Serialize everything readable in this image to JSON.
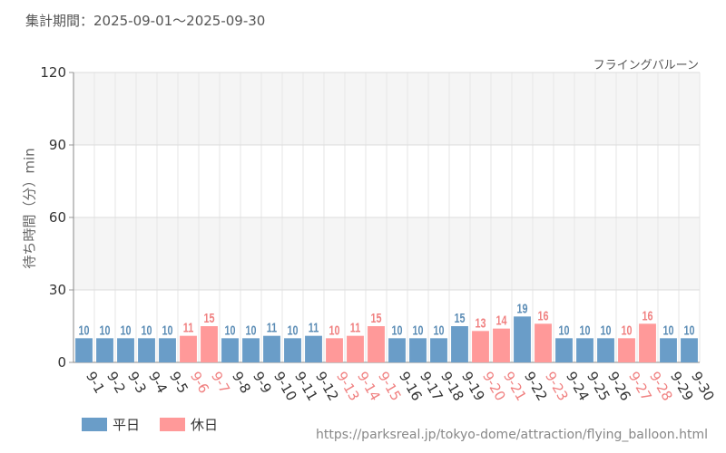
{
  "header": {
    "period_label": "集計期間：2025-09-01〜2025-09-30"
  },
  "attraction_name": "フライングバルーン",
  "source_url": "https://parksreal.jp/tokyo-dome/attraction/flying_balloon.html",
  "legend": [
    {
      "label": "平日",
      "color": "#6a9dc8"
    },
    {
      "label": "休日",
      "color": "#ff9999"
    }
  ],
  "chart_data": {
    "type": "bar",
    "title": "フライングバルーン",
    "xlabel": "",
    "ylabel": "待ち時間（分）min",
    "ylim": [
      0,
      120
    ],
    "yticks": [
      0,
      30,
      60,
      90,
      120
    ],
    "grid": true,
    "legend_position": "bottom-left",
    "categories": [
      "9-1",
      "9-2",
      "9-3",
      "9-4",
      "9-5",
      "9-6",
      "9-7",
      "9-8",
      "9-9",
      "9-10",
      "9-11",
      "9-12",
      "9-13",
      "9-14",
      "9-15",
      "9-16",
      "9-17",
      "9-18",
      "9-19",
      "9-20",
      "9-21",
      "9-22",
      "9-23",
      "9-24",
      "9-25",
      "9-26",
      "9-27",
      "9-28",
      "9-29",
      "9-30"
    ],
    "values": [
      10,
      10,
      10,
      10,
      10,
      11,
      15,
      10,
      10,
      11,
      10,
      11,
      10,
      11,
      15,
      10,
      10,
      10,
      15,
      13,
      14,
      19,
      16,
      10,
      10,
      10,
      10,
      16,
      10,
      10
    ],
    "day_type": [
      "平日",
      "平日",
      "平日",
      "平日",
      "平日",
      "休日",
      "休日",
      "平日",
      "平日",
      "平日",
      "平日",
      "平日",
      "休日",
      "休日",
      "休日",
      "平日",
      "平日",
      "平日",
      "平日",
      "休日",
      "休日",
      "平日",
      "休日",
      "平日",
      "平日",
      "平日",
      "休日",
      "休日",
      "平日",
      "平日"
    ],
    "series_colors": {
      "平日": "#6a9dc8",
      "休日": "#ff9999"
    },
    "label_colors": {
      "平日": "#5b8cb5",
      "休日": "#f08080"
    }
  }
}
